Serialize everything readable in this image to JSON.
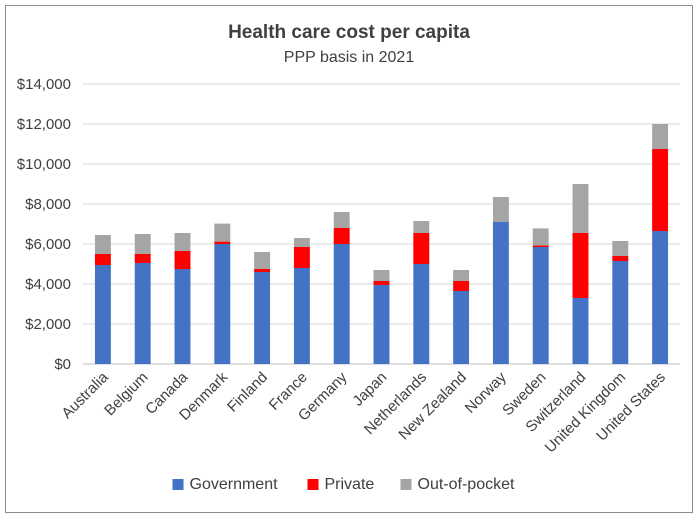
{
  "chart_data": {
    "type": "bar",
    "stacked": true,
    "title": "Health care cost per capita",
    "subtitle": "PPP basis in 2021",
    "xlabel": "",
    "ylabel": "",
    "ylim": [
      0,
      14000
    ],
    "yticks": [
      0,
      2000,
      4000,
      6000,
      8000,
      10000,
      12000,
      14000
    ],
    "ytick_labels": [
      "$0",
      "$2,000",
      "$4,000",
      "$6,000",
      "$8,000",
      "$10,000",
      "$12,000",
      "$14,000"
    ],
    "grid": true,
    "legend_position": "bottom",
    "categories": [
      "Australia",
      "Belgium",
      "Canada",
      "Denmark",
      "Finland",
      "France",
      "Germany",
      "Japan",
      "Netherlands",
      "New Zealand",
      "Norway",
      "Sweden",
      "Switzerland",
      "United Kingdom",
      "United States"
    ],
    "series": [
      {
        "name": "Government",
        "color": "#4472c4",
        "values": [
          4950,
          5050,
          4750,
          6000,
          4600,
          4800,
          6000,
          3950,
          5000,
          3650,
          7100,
          5850,
          3300,
          5150,
          6650
        ]
      },
      {
        "name": "Private",
        "color": "#ff0000",
        "values": [
          550,
          450,
          900,
          120,
          150,
          1050,
          800,
          200,
          1550,
          500,
          0,
          80,
          3250,
          250,
          4100
        ]
      },
      {
        "name": "Out-of-pocket",
        "color": "#a5a5a5",
        "values": [
          950,
          1000,
          900,
          900,
          850,
          450,
          800,
          550,
          600,
          550,
          1250,
          850,
          2450,
          750,
          1250
        ]
      }
    ]
  }
}
